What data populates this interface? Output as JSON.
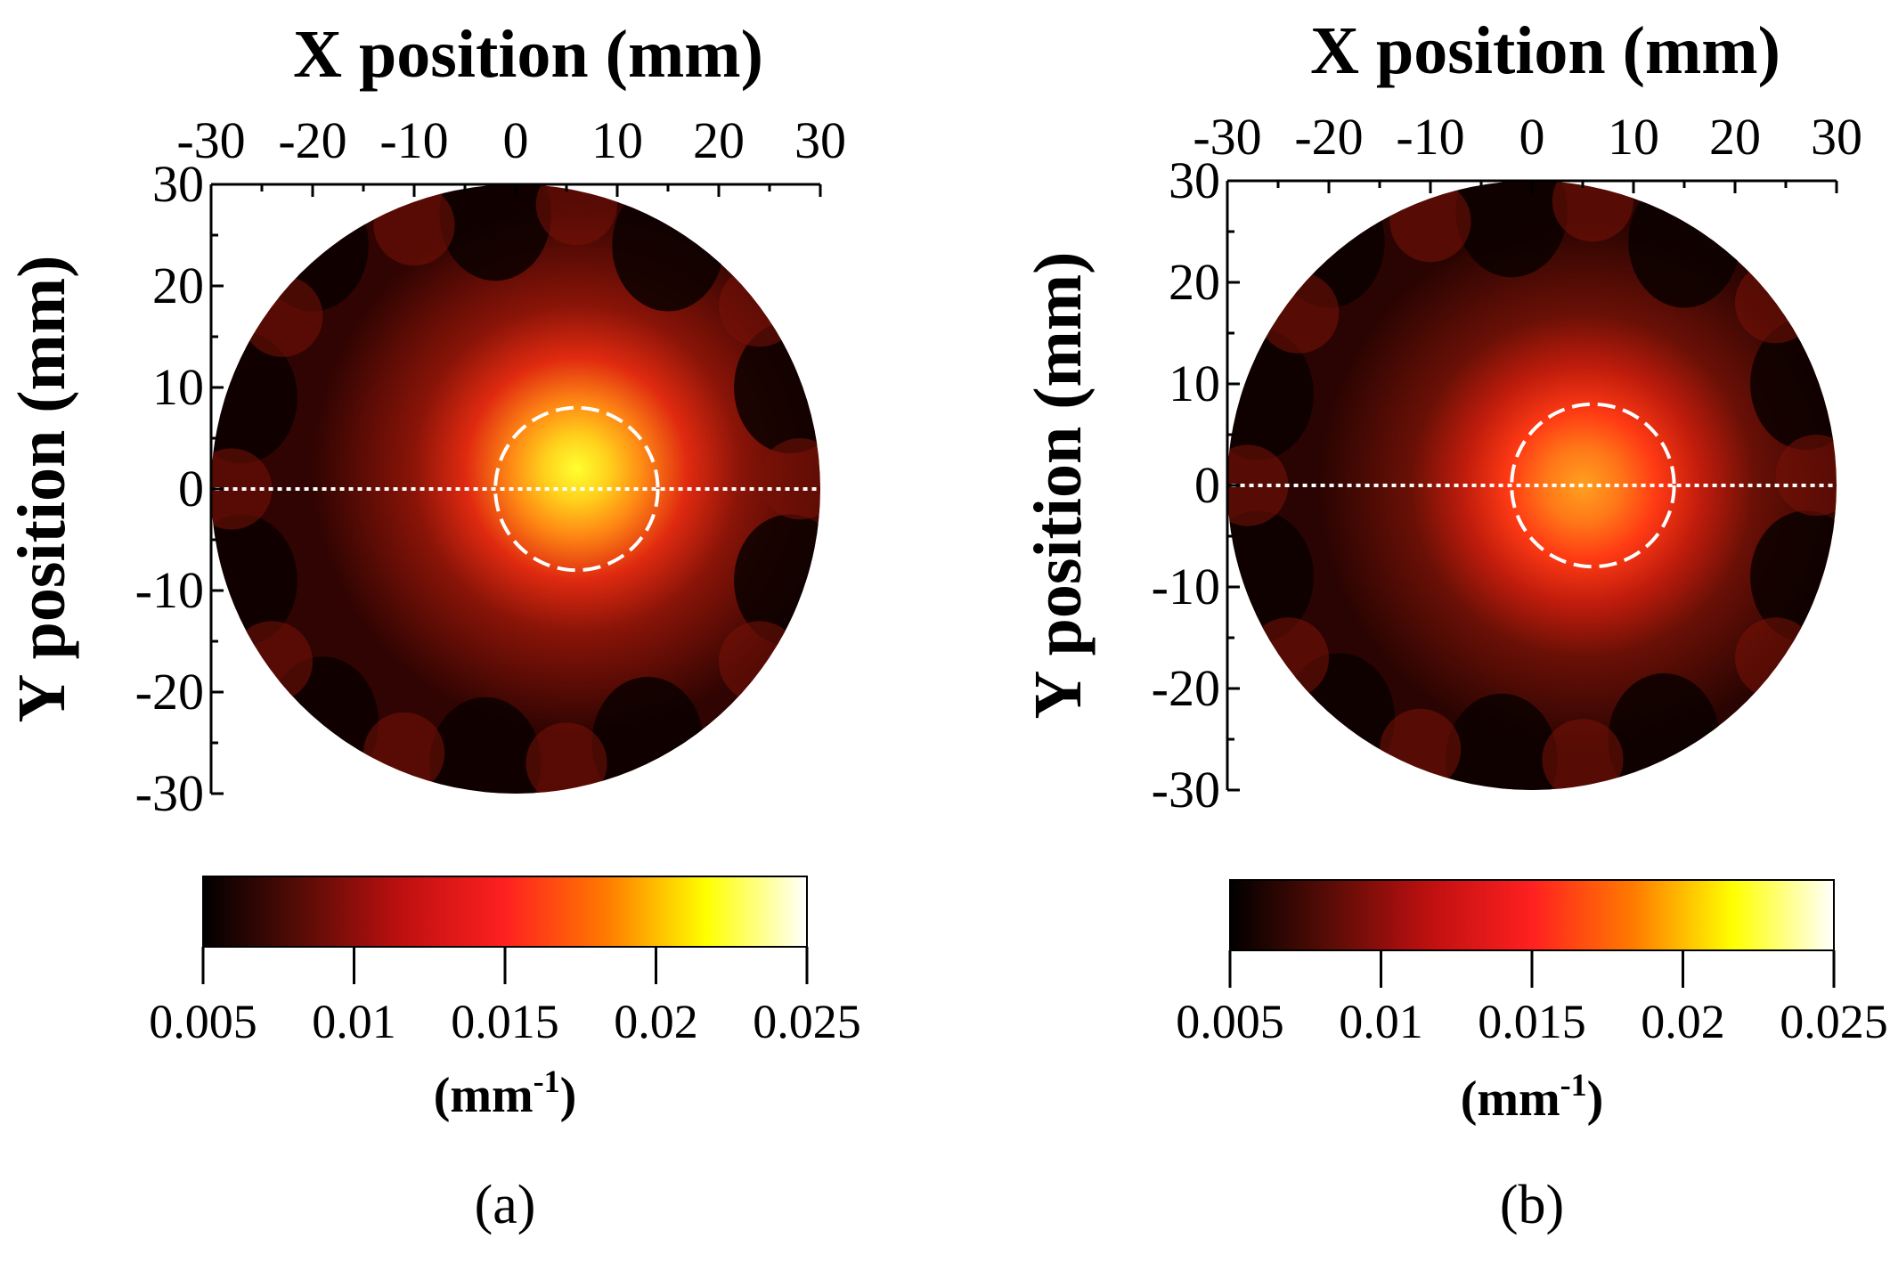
{
  "chart_data": [
    {
      "type": "heatmap",
      "panel_label": "(a)",
      "xlabel": "X position (mm)",
      "ylabel": "Y position (mm)",
      "xlim": [
        -30,
        30
      ],
      "ylim": [
        -30,
        30
      ],
      "x_ticks": [
        "-30",
        "-20",
        "-10",
        "0",
        "10",
        "20",
        "30"
      ],
      "y_ticks": [
        "30",
        "20",
        "10",
        "0",
        "-10",
        "-20",
        "-30"
      ],
      "field": {
        "shape": "circle",
        "center": [
          0,
          0
        ],
        "radius_mm": 30
      },
      "hotspot": {
        "center_mm": [
          6,
          2
        ],
        "peak_value": 0.02
      },
      "target_circle": {
        "center_mm": [
          6,
          0
        ],
        "radius_mm": 8,
        "style": "dashed"
      },
      "profile_line": {
        "y_mm": 0,
        "style": "dotted"
      },
      "colorbar": {
        "unit_label": "(mm",
        "unit_exponent": "-1",
        "unit_close": ")",
        "range": [
          0.005,
          0.025
        ],
        "tick_labels": [
          "0.005",
          "0.01",
          "0.015",
          "0.02",
          "0.025"
        ],
        "colors": [
          "#000000",
          "#5a0c06",
          "#c01010",
          "#ff2020",
          "#ff7a00",
          "#ffff00",
          "#ffffff"
        ]
      }
    },
    {
      "type": "heatmap",
      "panel_label": "(b)",
      "xlabel": "X position (mm)",
      "ylabel": "Y position (mm)",
      "xlim": [
        -30,
        30
      ],
      "ylim": [
        -30,
        30
      ],
      "x_ticks": [
        "-30",
        "-20",
        "-10",
        "0",
        "10",
        "20",
        "30"
      ],
      "y_ticks": [
        "30",
        "20",
        "10",
        "0",
        "-10",
        "-20",
        "-30"
      ],
      "field": {
        "shape": "circle",
        "center": [
          0,
          0
        ],
        "radius_mm": 30
      },
      "hotspot": {
        "center_mm": [
          5,
          0
        ],
        "peak_value": 0.016
      },
      "target_circle": {
        "center_mm": [
          6,
          0
        ],
        "radius_mm": 8,
        "style": "dashed"
      },
      "profile_line": {
        "y_mm": 0,
        "style": "dotted"
      },
      "colorbar": {
        "unit_label": "(mm",
        "unit_exponent": "-1",
        "unit_close": ")",
        "range": [
          0.005,
          0.025
        ],
        "tick_labels": [
          "0.005",
          "0.01",
          "0.015",
          "0.02",
          "0.025"
        ],
        "colors": [
          "#000000",
          "#5a0c06",
          "#c01010",
          "#ff2020",
          "#ff7a00",
          "#ffff00",
          "#ffffff"
        ]
      }
    }
  ]
}
